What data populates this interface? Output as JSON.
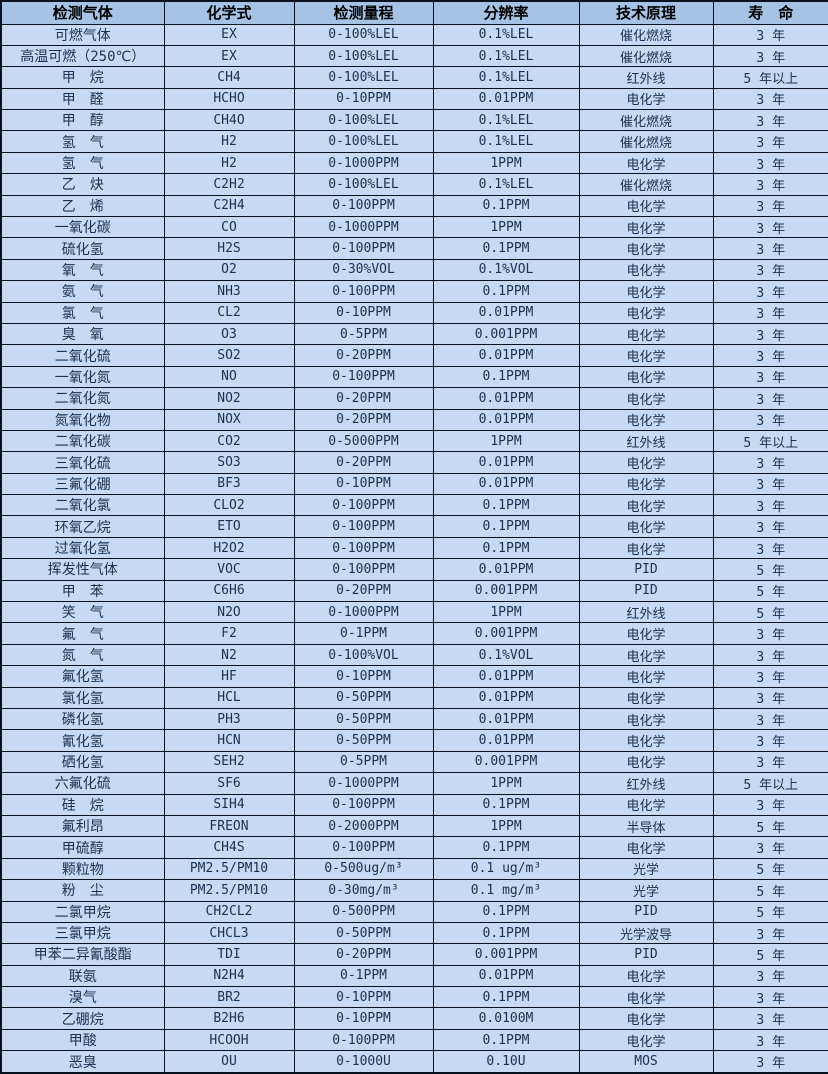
{
  "colors": {
    "header_bg": "#a6c3e6",
    "row_bg": "#c7daf1",
    "border": "#0a1220",
    "text": "#1c3050",
    "header_text": "#000000"
  },
  "table": {
    "columns": [
      "检测气体",
      "化学式",
      "检测量程",
      "分辨率",
      "技术原理",
      "寿　命"
    ],
    "rows": [
      [
        "可燃气体",
        "EX",
        "0-100%LEL",
        "0.1%LEL",
        "催化燃烧",
        "3 年"
      ],
      [
        "高温可燃（250℃）",
        "EX",
        "0-100%LEL",
        "0.1%LEL",
        "催化燃烧",
        "3 年"
      ],
      [
        "甲　烷",
        "CH4",
        "0-100%LEL",
        "0.1%LEL",
        "红外线",
        "5 年以上"
      ],
      [
        "甲　醛",
        "HCHO",
        "0-10PPM",
        "0.01PPM",
        "电化学",
        "3 年"
      ],
      [
        "甲　醇",
        "CH4O",
        "0-100%LEL",
        "0.1%LEL",
        "催化燃烧",
        "3 年"
      ],
      [
        "氢　气",
        "H2",
        "0-100%LEL",
        "0.1%LEL",
        "催化燃烧",
        "3 年"
      ],
      [
        "氢　气",
        "H2",
        "0-1000PPM",
        "1PPM",
        "电化学",
        "3 年"
      ],
      [
        "乙　炔",
        "C2H2",
        "0-100%LEL",
        "0.1%LEL",
        "催化燃烧",
        "3 年"
      ],
      [
        "乙　烯",
        "C2H4",
        "0-100PPM",
        "0.1PPM",
        "电化学",
        "3 年"
      ],
      [
        "一氧化碳",
        "CO",
        "0-1000PPM",
        "1PPM",
        "电化学",
        "3 年"
      ],
      [
        "硫化氢",
        "H2S",
        "0-100PPM",
        "0.1PPM",
        "电化学",
        "3 年"
      ],
      [
        "氧　气",
        "O2",
        "0-30%VOL",
        "0.1%VOL",
        "电化学",
        "3 年"
      ],
      [
        "氨　气",
        "NH3",
        "0-100PPM",
        "0.1PPM",
        "电化学",
        "3 年"
      ],
      [
        "氯　气",
        "CL2",
        "0-10PPM",
        "0.01PPM",
        "电化学",
        "3 年"
      ],
      [
        "臭　氧",
        "O3",
        "0-5PPM",
        "0.001PPM",
        "电化学",
        "3 年"
      ],
      [
        "二氧化硫",
        "SO2",
        "0-20PPM",
        "0.01PPM",
        "电化学",
        "3 年"
      ],
      [
        "一氧化氮",
        "NO",
        "0-100PPM",
        "0.1PPM",
        "电化学",
        "3 年"
      ],
      [
        "二氧化氮",
        "NO2",
        "0-20PPM",
        "0.01PPM",
        "电化学",
        "3 年"
      ],
      [
        "氮氧化物",
        "NOX",
        "0-20PPM",
        "0.01PPM",
        "电化学",
        "3 年"
      ],
      [
        "二氧化碳",
        "CO2",
        "0-5000PPM",
        "1PPM",
        "红外线",
        "5 年以上"
      ],
      [
        "三氧化硫",
        "SO3",
        "0-20PPM",
        "0.01PPM",
        "电化学",
        "3 年"
      ],
      [
        "三氟化硼",
        "BF3",
        "0-10PPM",
        "0.01PPM",
        "电化学",
        "3 年"
      ],
      [
        "二氧化氯",
        "CLO2",
        "0-100PPM",
        "0.1PPM",
        "电化学",
        "3 年"
      ],
      [
        "环氧乙烷",
        "ETO",
        "0-100PPM",
        "0.1PPM",
        "电化学",
        "3 年"
      ],
      [
        "过氧化氢",
        "H2O2",
        "0-100PPM",
        "0.1PPM",
        "电化学",
        "3 年"
      ],
      [
        "挥发性气体",
        "VOC",
        "0-100PPM",
        "0.01PPM",
        "PID",
        "5 年"
      ],
      [
        "甲　苯",
        "C6H6",
        "0-20PPM",
        "0.001PPM",
        "PID",
        "5 年"
      ],
      [
        "笑　气",
        "N2O",
        "0-1000PPM",
        "1PPM",
        "红外线",
        "5 年"
      ],
      [
        "氟　气",
        "F2",
        "0-1PPM",
        "0.001PPM",
        "电化学",
        "3 年"
      ],
      [
        "氮　气",
        "N2",
        "0-100%VOL",
        "0.1%VOL",
        "电化学",
        "3 年"
      ],
      [
        "氟化氢",
        "HF",
        "0-10PPM",
        "0.01PPM",
        "电化学",
        "3 年"
      ],
      [
        "氯化氢",
        "HCL",
        "0-50PPM",
        "0.01PPM",
        "电化学",
        "3 年"
      ],
      [
        "磷化氢",
        "PH3",
        "0-50PPM",
        "0.01PPM",
        "电化学",
        "3 年"
      ],
      [
        "氰化氢",
        "HCN",
        "0-50PPM",
        "0.01PPM",
        "电化学",
        "3 年"
      ],
      [
        "硒化氢",
        "SEH2",
        "0-5PPM",
        "0.001PPM",
        "电化学",
        "3 年"
      ],
      [
        "六氟化硫",
        "SF6",
        "0-1000PPM",
        "1PPM",
        "红外线",
        "5 年以上"
      ],
      [
        "硅　烷",
        "SIH4",
        "0-100PPM",
        "0.1PPM",
        "电化学",
        "3 年"
      ],
      [
        "氟利昂",
        "FREON",
        "0-2000PPM",
        "1PPM",
        "半导体",
        "5 年"
      ],
      [
        "甲硫醇",
        "CH4S",
        "0-100PPM",
        "0.1PPM",
        "电化学",
        "3 年"
      ],
      [
        "颗粒物",
        "PM2.5/PM10",
        "0-500ug/m³",
        "0.1 ug/m³",
        "光学",
        "5 年"
      ],
      [
        "粉　尘",
        "PM2.5/PM10",
        "0-30mg/m³",
        "0.1 mg/m³",
        "光学",
        "5 年"
      ],
      [
        "二氯甲烷",
        "CH2CL2",
        "0-500PPM",
        "0.1PPM",
        "PID",
        "5 年"
      ],
      [
        "三氯甲烷",
        "CHCL3",
        "0-50PPM",
        "0.1PPM",
        "光学波导",
        "3 年"
      ],
      [
        "甲苯二异氰酸酯",
        "TDI",
        "0-20PPM",
        "0.001PPM",
        "PID",
        "5 年"
      ],
      [
        "联氨",
        "N2H4",
        "0-1PPM",
        "0.01PPM",
        "电化学",
        "3 年"
      ],
      [
        "溴气",
        "BR2",
        "0-10PPM",
        "0.1PPM",
        "电化学",
        "3 年"
      ],
      [
        "乙硼烷",
        "B2H6",
        "0-10PPM",
        "0.0100M",
        "电化学",
        "3 年"
      ],
      [
        "甲酸",
        "HCOOH",
        "0-100PPM",
        "0.1PPM",
        "电化学",
        "3 年"
      ],
      [
        "恶臭",
        "OU",
        "0-1000U",
        "0.10U",
        "MOS",
        "3 年"
      ]
    ]
  }
}
